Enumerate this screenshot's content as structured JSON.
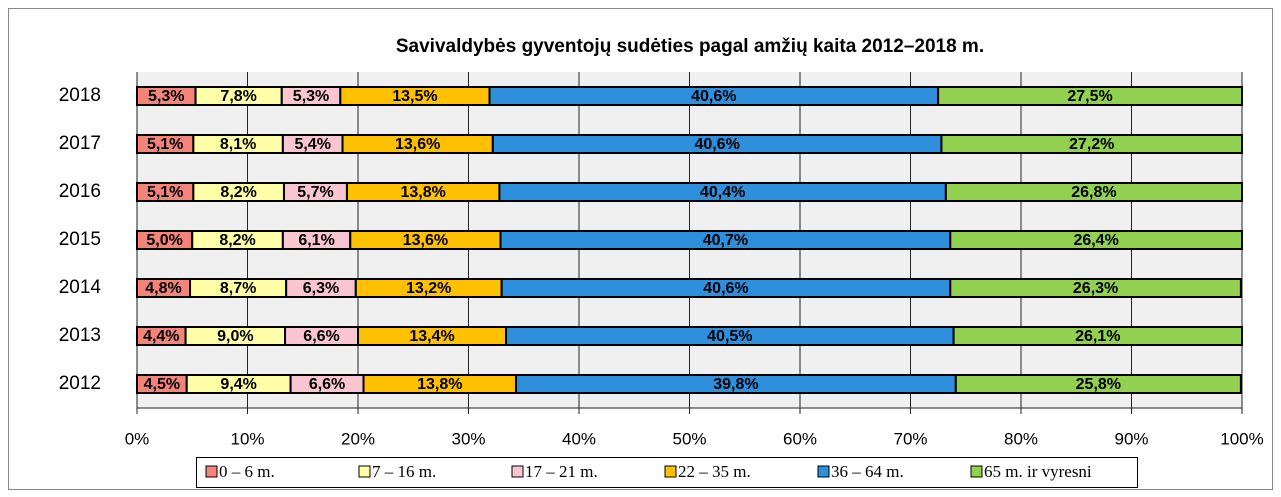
{
  "chart_data": {
    "type": "stacked-bar-horizontal",
    "title": "Savivaldybės gyventojų sudėties pagal amžių kaita 2012–2018 m.",
    "categories": [
      "2018",
      "2017",
      "2016",
      "2015",
      "2014",
      "2013",
      "2012"
    ],
    "series": [
      {
        "name": "0 – 6 m.",
        "color": "#f4837a",
        "values": [
          5.3,
          5.1,
          5.1,
          5.0,
          4.8,
          4.4,
          4.5
        ],
        "value_labels": [
          "5,3%",
          "5,1%",
          "5,1%",
          "5,0%",
          "4,8%",
          "4,4%",
          "4,5%"
        ]
      },
      {
        "name": "7 – 16 m.",
        "color": "#ffffa8",
        "values": [
          7.8,
          8.1,
          8.2,
          8.2,
          8.7,
          9.0,
          9.4
        ],
        "value_labels": [
          "7,8%",
          "8,1%",
          "8,2%",
          "8,2%",
          "8,7%",
          "9,0%",
          "9,4%"
        ]
      },
      {
        "name": "17 – 21 m.",
        "color": "#f9c5d0",
        "values": [
          5.3,
          5.4,
          5.7,
          6.1,
          6.3,
          6.6,
          6.6
        ],
        "value_labels": [
          "5,3%",
          "5,4%",
          "5,7%",
          "6,1%",
          "6,3%",
          "6,6%",
          "6,6%"
        ]
      },
      {
        "name": "22 – 35 m.",
        "color": "#ffc000",
        "values": [
          13.5,
          13.6,
          13.8,
          13.6,
          13.2,
          13.4,
          13.8
        ],
        "value_labels": [
          "13,5%",
          "13,6%",
          "13,8%",
          "13,6%",
          "13,2%",
          "13,4%",
          "13,8%"
        ]
      },
      {
        "name": "36 – 64 m.",
        "color": "#2e8fdd",
        "values": [
          40.6,
          40.6,
          40.4,
          40.7,
          40.6,
          40.5,
          39.8
        ],
        "value_labels": [
          "40,6%",
          "40,6%",
          "40,4%",
          "40,7%",
          "40,6%",
          "40,5%",
          "39,8%"
        ]
      },
      {
        "name": "65 m. ir vyresni",
        "color": "#92d050",
        "values": [
          27.5,
          27.2,
          26.8,
          26.4,
          26.3,
          26.1,
          25.8
        ],
        "value_labels": [
          "27,5%",
          "27,2%",
          "26,8%",
          "26,4%",
          "26,3%",
          "26,1%",
          "25,8%"
        ]
      }
    ],
    "xlim": [
      0,
      100
    ],
    "xticks": [
      {
        "value": 0,
        "label": "0%"
      },
      {
        "value": 10,
        "label": "10%"
      },
      {
        "value": 20,
        "label": "20%"
      },
      {
        "value": 30,
        "label": "30%"
      },
      {
        "value": 40,
        "label": "40%"
      },
      {
        "value": 50,
        "label": "50%"
      },
      {
        "value": 60,
        "label": "60%"
      },
      {
        "value": 70,
        "label": "70%"
      },
      {
        "value": 80,
        "label": "80%"
      },
      {
        "value": 90,
        "label": "90%"
      },
      {
        "value": 100,
        "label": "100%"
      }
    ],
    "grid": true,
    "legend": "bottom"
  }
}
